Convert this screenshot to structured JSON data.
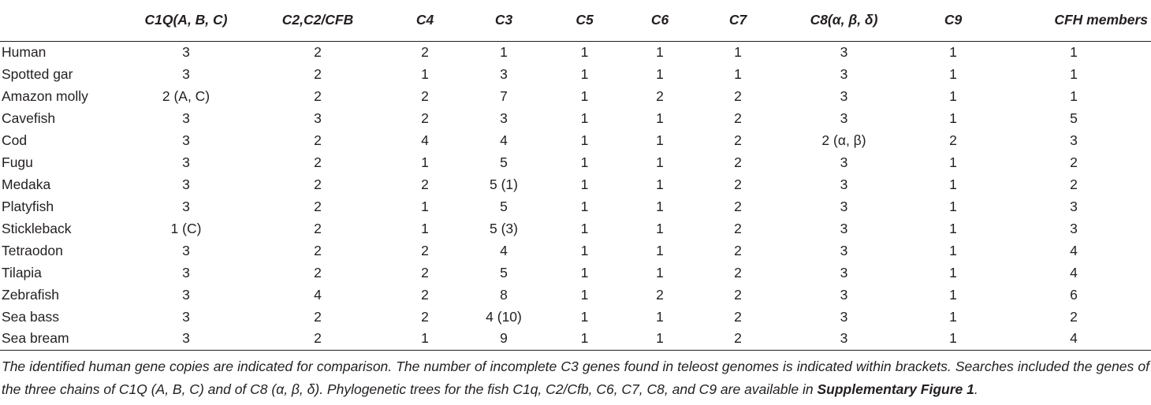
{
  "table": {
    "columns": [
      "",
      "C1Q(A, B, C)",
      "C2,C2/CFB",
      "C4",
      "C3",
      "C5",
      "C6",
      "C7",
      "C8(α, β, δ)",
      "C9",
      "CFH members"
    ],
    "rows": [
      {
        "species": "Human",
        "c1q": "3",
        "c2": "2",
        "c4": "2",
        "c3": "1",
        "c5": "1",
        "c6": "1",
        "c7": "1",
        "c8": "3",
        "c9": "1",
        "cfh": "1"
      },
      {
        "species": "Spotted gar",
        "c1q": "3",
        "c2": "2",
        "c4": "1",
        "c3": "3",
        "c5": "1",
        "c6": "1",
        "c7": "1",
        "c8": "3",
        "c9": "1",
        "cfh": "1"
      },
      {
        "species": "Amazon molly",
        "c1q": "2 (A, C)",
        "c2": "2",
        "c4": "2",
        "c3": "7",
        "c5": "1",
        "c6": "2",
        "c7": "2",
        "c8": "3",
        "c9": "1",
        "cfh": "1"
      },
      {
        "species": "Cavefish",
        "c1q": "3",
        "c2": "3",
        "c4": "2",
        "c3": "3",
        "c5": "1",
        "c6": "1",
        "c7": "2",
        "c8": "3",
        "c9": "1",
        "cfh": "5"
      },
      {
        "species": "Cod",
        "c1q": "3",
        "c2": "2",
        "c4": "4",
        "c3": "4",
        "c5": "1",
        "c6": "1",
        "c7": "2",
        "c8": "2 (α, β)",
        "c9": "2",
        "cfh": "3"
      },
      {
        "species": "Fugu",
        "c1q": "3",
        "c2": "2",
        "c4": "1",
        "c3": "5",
        "c5": "1",
        "c6": "1",
        "c7": "2",
        "c8": "3",
        "c9": "1",
        "cfh": "2"
      },
      {
        "species": "Medaka",
        "c1q": "3",
        "c2": "2",
        "c4": "2",
        "c3": "5 (1)",
        "c5": "1",
        "c6": "1",
        "c7": "2",
        "c8": "3",
        "c9": "1",
        "cfh": "2"
      },
      {
        "species": "Platyfish",
        "c1q": "3",
        "c2": "2",
        "c4": "1",
        "c3": "5",
        "c5": "1",
        "c6": "1",
        "c7": "2",
        "c8": "3",
        "c9": "1",
        "cfh": "3"
      },
      {
        "species": "Stickleback",
        "c1q": "1 (C)",
        "c2": "2",
        "c4": "1",
        "c3": "5 (3)",
        "c5": "1",
        "c6": "1",
        "c7": "2",
        "c8": "3",
        "c9": "1",
        "cfh": "3"
      },
      {
        "species": "Tetraodon",
        "c1q": "3",
        "c2": "2",
        "c4": "2",
        "c3": "4",
        "c5": "1",
        "c6": "1",
        "c7": "2",
        "c8": "3",
        "c9": "1",
        "cfh": "4"
      },
      {
        "species": "Tilapia",
        "c1q": "3",
        "c2": "2",
        "c4": "2",
        "c3": "5",
        "c5": "1",
        "c6": "1",
        "c7": "2",
        "c8": "3",
        "c9": "1",
        "cfh": "4"
      },
      {
        "species": "Zebrafish",
        "c1q": "3",
        "c2": "4",
        "c4": "2",
        "c3": "8",
        "c5": "1",
        "c6": "2",
        "c7": "2",
        "c8": "3",
        "c9": "1",
        "cfh": "6"
      },
      {
        "species": "Sea bass",
        "c1q": "3",
        "c2": "2",
        "c4": "2",
        "c3": "4 (10)",
        "c5": "1",
        "c6": "1",
        "c7": "2",
        "c8": "3",
        "c9": "1",
        "cfh": "2"
      },
      {
        "species": "Sea bream",
        "c1q": "3",
        "c2": "2",
        "c4": "1",
        "c3": "9",
        "c5": "1",
        "c6": "1",
        "c7": "2",
        "c8": "3",
        "c9": "1",
        "cfh": "4"
      }
    ]
  },
  "footnote": {
    "text": "The identified human gene copies are indicated for comparison. The number of incomplete C3 genes found in teleost genomes is indicated within brackets. Searches included the genes of the three chains of C1Q (A, B, C) and of C8 (α, β, δ). Phylogenetic trees for the fish C1q, C2/Cfb, C6, C7, C8, and C9 are available in ",
    "link_text": "Supplementary Figure 1",
    "end": "."
  }
}
